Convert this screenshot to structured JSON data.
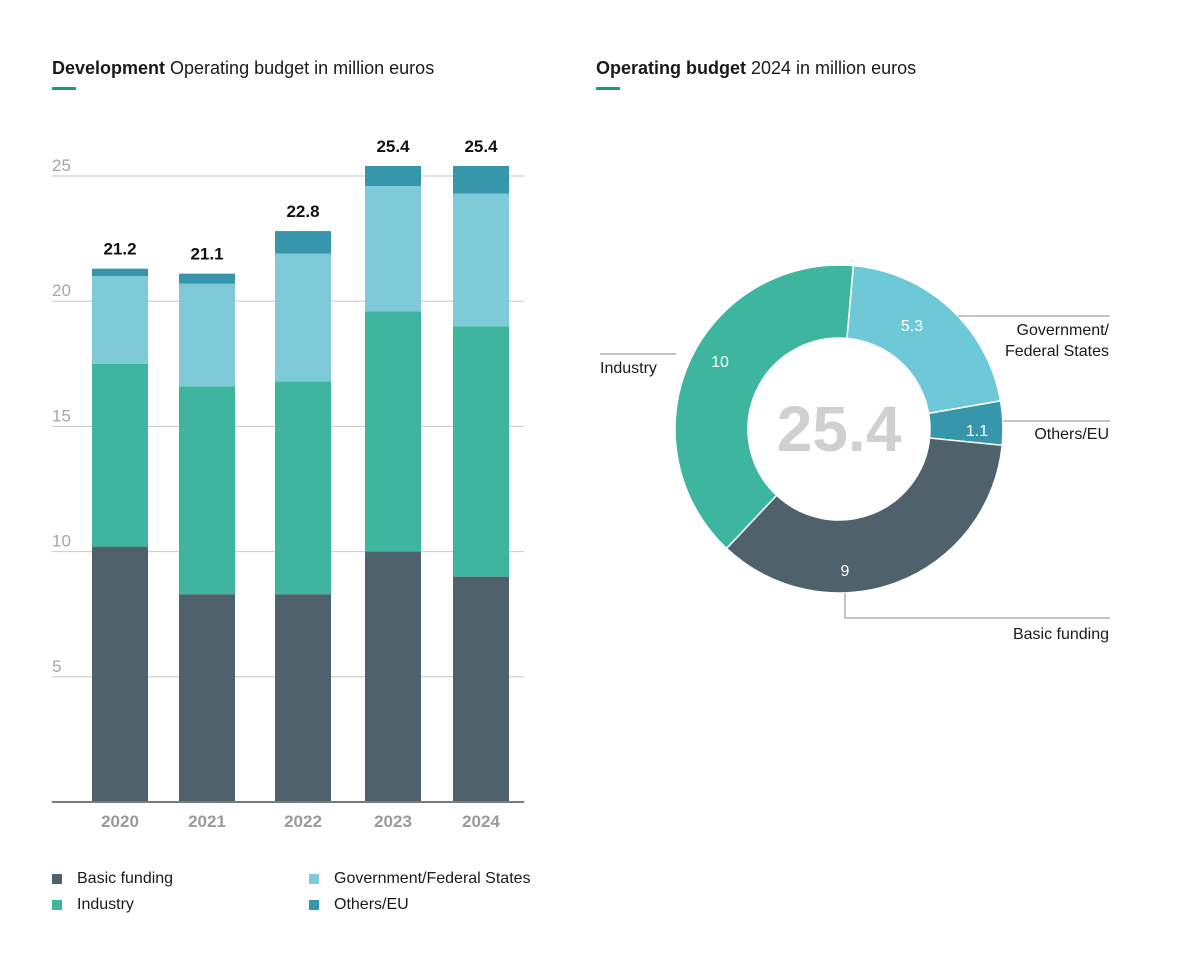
{
  "left_heading": {
    "bold": "Development",
    "rest": " Operating budget in million euros"
  },
  "right_heading": {
    "bold": "Operating budget",
    "rest": " 2024 in million euros"
  },
  "colors": {
    "basic": "#4f626c",
    "industry": "#3db59f",
    "government": "#7ecad8",
    "others": "#3596ac",
    "government_pie": "#6dc8d8"
  },
  "legend": [
    {
      "label": "Basic funding",
      "color_key": "basic"
    },
    {
      "label": "Industry",
      "color_key": "industry"
    },
    {
      "label": "Government/Federal States",
      "color_key": "government"
    },
    {
      "label": "Others/EU",
      "color_key": "others"
    }
  ],
  "chart_data": [
    {
      "type": "bar",
      "stacked": true,
      "categories": [
        "2020",
        "2021",
        "2022",
        "2023",
        "2024"
      ],
      "series": [
        {
          "name": "Basic funding",
          "values": [
            10.2,
            8.3,
            8.3,
            10.0,
            9.0
          ]
        },
        {
          "name": "Industry",
          "values": [
            7.3,
            8.3,
            8.5,
            9.6,
            10.0
          ]
        },
        {
          "name": "Government/Federal States",
          "values": [
            3.5,
            4.1,
            5.1,
            5.0,
            5.3
          ]
        },
        {
          "name": "Others/EU",
          "values": [
            0.3,
            0.4,
            0.9,
            0.8,
            1.1
          ]
        }
      ],
      "totals": [
        "21.2",
        "21.1",
        "22.8",
        "25.4",
        "25.4"
      ],
      "yticks": [
        "5",
        "10",
        "15",
        "20",
        "25"
      ],
      "ylim": [
        0,
        25.4
      ],
      "grid": true
    },
    {
      "type": "pie",
      "donut": true,
      "center_label": "25.4",
      "slices": [
        {
          "label": "Government/\nFederal States",
          "value": 5.3,
          "value_label": "5.3",
          "color_key": "government_pie"
        },
        {
          "label": "Others/EU",
          "value": 1.1,
          "value_label": "1.1",
          "color_key": "others"
        },
        {
          "label": "Basic funding",
          "value": 9,
          "value_label": "9",
          "color_key": "basic"
        },
        {
          "label": "Industry",
          "value": 10,
          "value_label": "10",
          "color_key": "industry"
        }
      ]
    }
  ]
}
